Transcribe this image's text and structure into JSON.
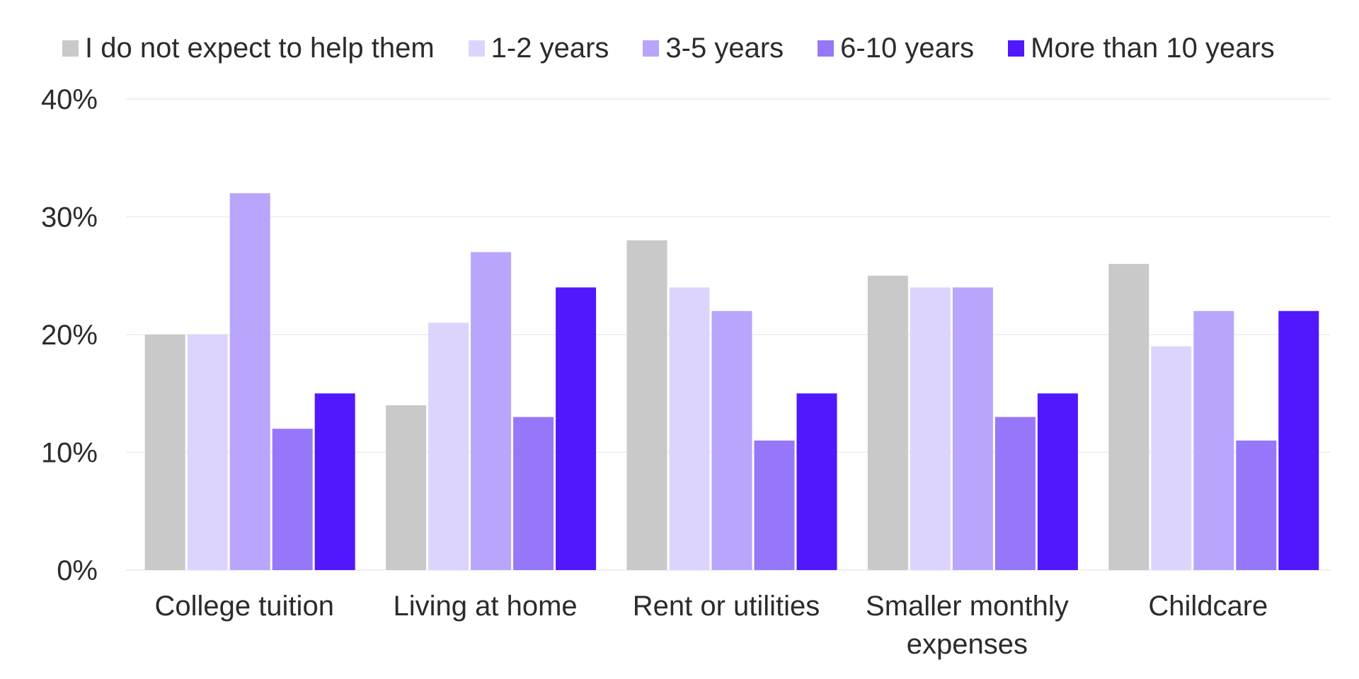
{
  "chart_data": {
    "type": "bar",
    "categories": [
      "College tuition",
      "Living at home",
      "Rent or utilities",
      "Smaller monthly expenses",
      "Childcare"
    ],
    "category_lines": [
      [
        "College tuition"
      ],
      [
        "Living at home"
      ],
      [
        "Rent or utilities"
      ],
      [
        "Smaller monthly",
        "expenses"
      ],
      [
        "Childcare"
      ]
    ],
    "series": [
      {
        "name": "I do not expect to help them",
        "color": "#c9c9c9",
        "values": [
          20,
          14,
          28,
          25,
          26
        ]
      },
      {
        "name": "1-2 years",
        "color": "#dcd4fd",
        "values": [
          20,
          21,
          24,
          24,
          19
        ]
      },
      {
        "name": "3-5 years",
        "color": "#b9a5fb",
        "values": [
          32,
          27,
          22,
          24,
          22
        ]
      },
      {
        "name": "6-10 years",
        "color": "#9677fa",
        "values": [
          12,
          13,
          11,
          13,
          11
        ]
      },
      {
        "name": "More than 10 years",
        "color": "#5018fa",
        "values": [
          15,
          24,
          15,
          15,
          22
        ]
      }
    ],
    "ylim": [
      0,
      40
    ],
    "yticks": [
      0,
      10,
      20,
      30,
      40
    ],
    "ytick_labels": [
      "0%",
      "10%",
      "20%",
      "30%",
      "40%"
    ],
    "grid": true,
    "legend_position": "top"
  }
}
